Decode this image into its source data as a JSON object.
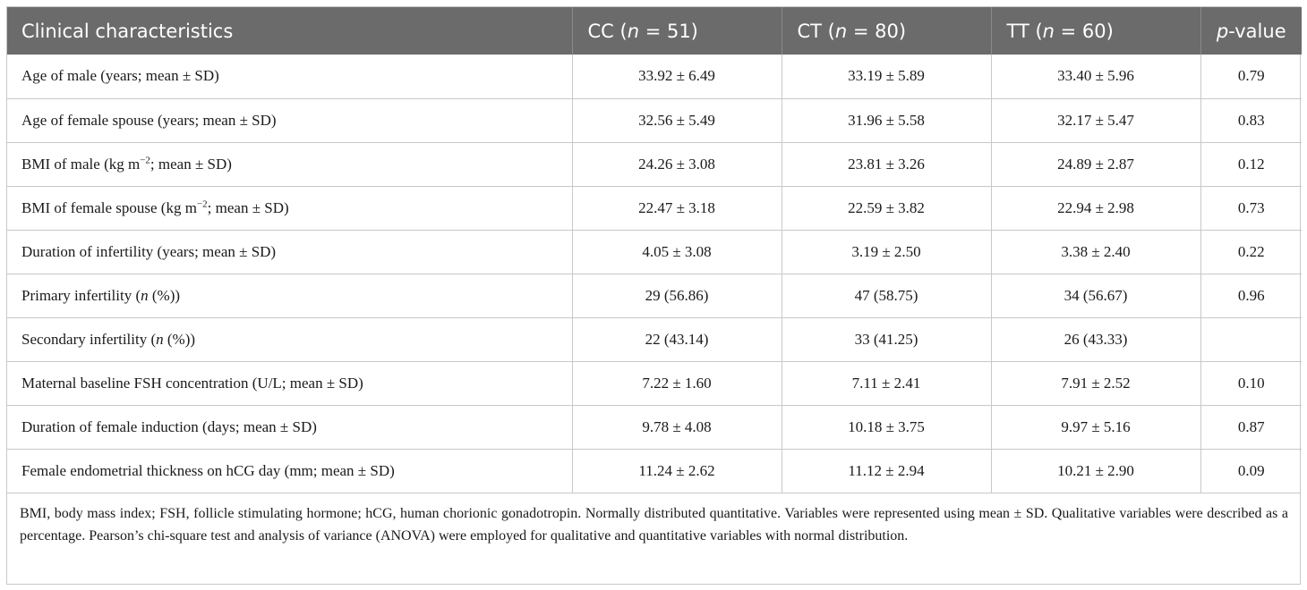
{
  "table": {
    "headers": {
      "characteristic": "Clinical characteristics",
      "cc": "CC (n = 51)",
      "ct": "CT (n = 80)",
      "tt": "TT (n = 60)",
      "pvalue": "p-value"
    },
    "rows": [
      {
        "label": "Age of male (years; mean ± SD)",
        "cc": "33.92 ± 6.49",
        "ct": "33.19 ± 5.89",
        "tt": "33.40 ± 5.96",
        "p": "0.79"
      },
      {
        "label": "Age of female spouse (years; mean ± SD)",
        "cc": "32.56 ± 5.49",
        "ct": "31.96 ± 5.58",
        "tt": "32.17 ± 5.47",
        "p": "0.83"
      },
      {
        "label": "BMI of male (kg m−2; mean ± SD)",
        "cc": "24.26 ± 3.08",
        "ct": "23.81 ± 3.26",
        "tt": "24.89 ± 2.87",
        "p": "0.12"
      },
      {
        "label": "BMI of female spouse (kg m−2; mean ± SD)",
        "cc": "22.47 ± 3.18",
        "ct": "22.59 ± 3.82",
        "tt": "22.94 ± 2.98",
        "p": "0.73"
      },
      {
        "label": "Duration of infertility (years; mean ± SD)",
        "cc": "4.05 ± 3.08",
        "ct": "3.19 ± 2.50",
        "tt": "3.38 ± 2.40",
        "p": "0.22"
      },
      {
        "label": "Primary infertility (n (%))",
        "cc": "29 (56.86)",
        "ct": "47 (58.75)",
        "tt": "34 (56.67)",
        "p": "0.96"
      },
      {
        "label": "Secondary infertility (n (%))",
        "cc": "22 (43.14)",
        "ct": "33 (41.25)",
        "tt": "26 (43.33)",
        "p": ""
      },
      {
        "label": "Maternal baseline FSH concentration (U/L; mean ± SD)",
        "cc": "7.22 ± 1.60",
        "ct": "7.11 ± 2.41",
        "tt": "7.91 ± 2.52",
        "p": "0.10"
      },
      {
        "label": "Duration of female induction (days; mean ± SD)",
        "cc": "9.78 ± 4.08",
        "ct": "10.18 ± 3.75",
        "tt": "9.97 ± 5.16",
        "p": "0.87"
      },
      {
        "label": "Female endometrial thickness on hCG day (mm; mean ± SD)",
        "cc": "11.24 ± 2.62",
        "ct": "11.12 ± 2.94",
        "tt": "10.21 ± 2.90",
        "p": "0.09"
      }
    ],
    "footnote": "BMI, body mass index; FSH, follicle stimulating hormone; hCG, human chorionic gonadotropin. Normally distributed quantitative. Variables were represented using mean ± SD. Qualitative variables were described as a percentage. Pearson’s chi-square test and analysis of variance (ANOVA) were employed for qualitative and quantitative variables with normal distribution."
  },
  "colors": {
    "header_bg": "#6b6b6b",
    "header_text": "#ffffff",
    "border": "#c8c8c8"
  }
}
